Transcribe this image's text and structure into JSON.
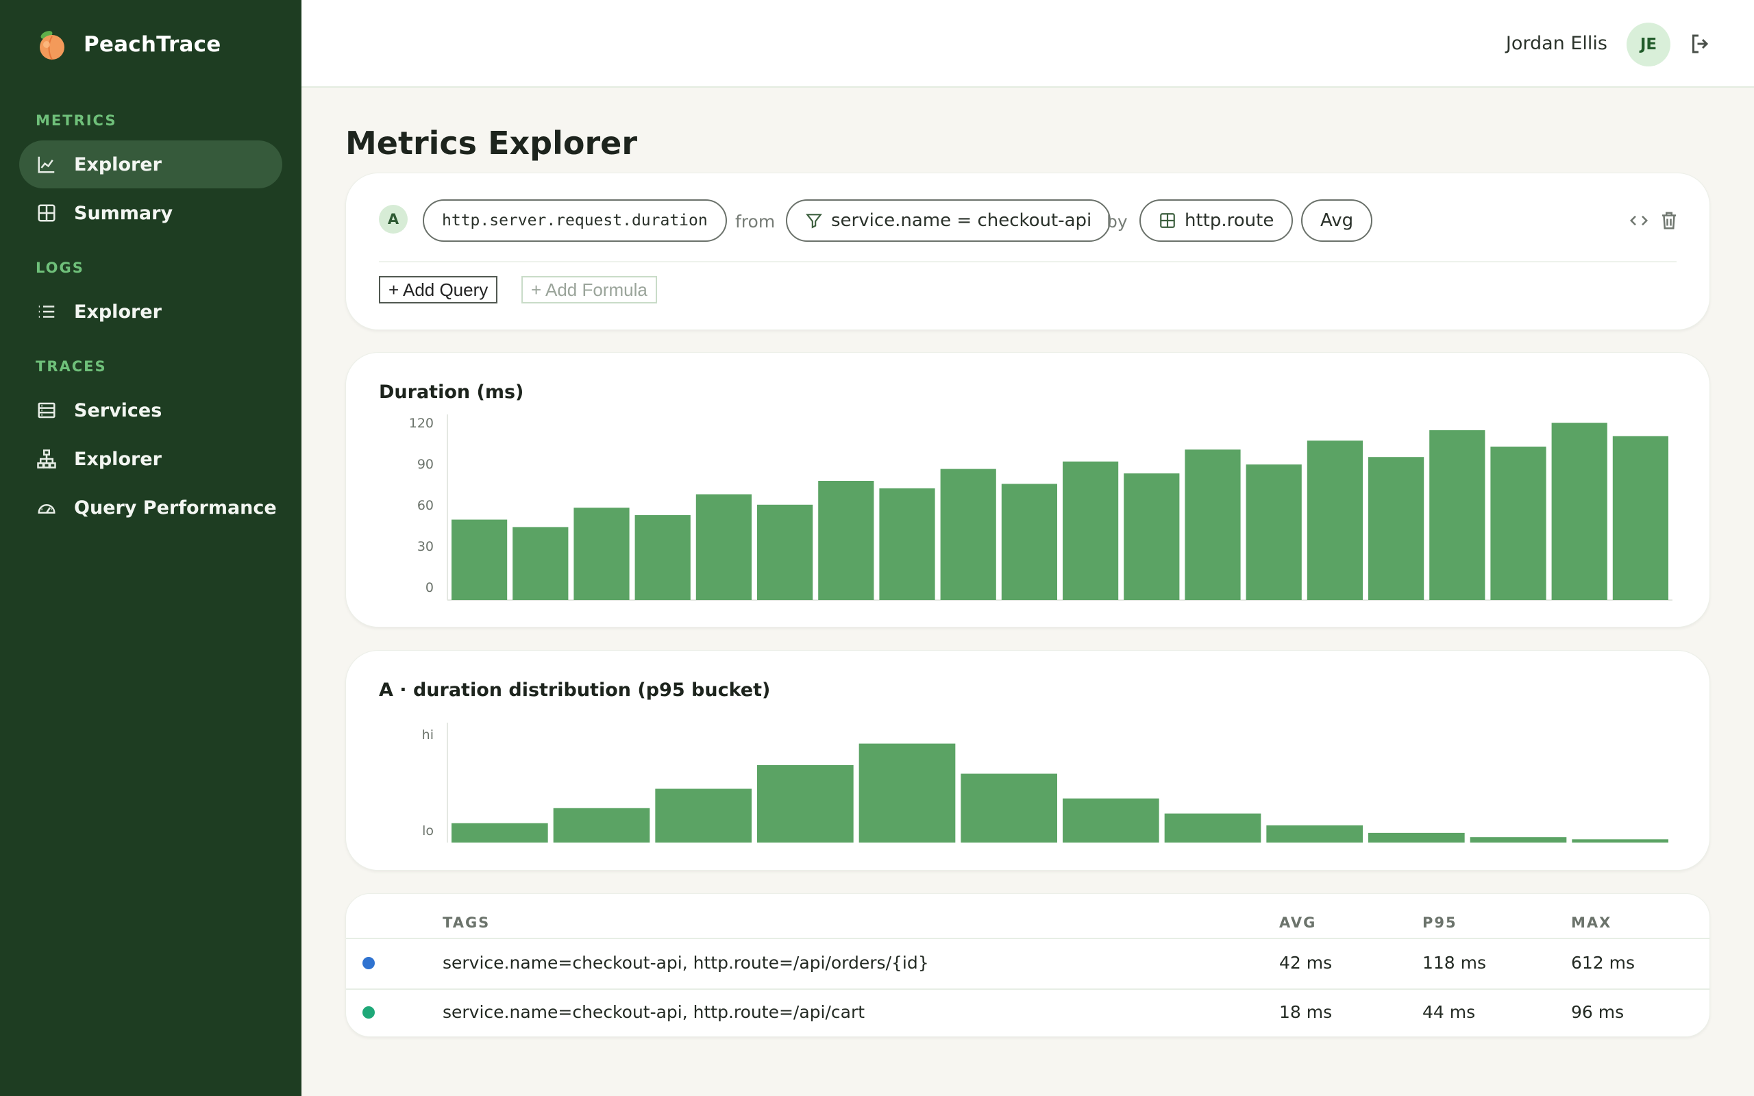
{
  "brand": {
    "name": "PeachTrace",
    "icon": "peach-icon"
  },
  "sidebar": {
    "sections": [
      {
        "label": "METRICS",
        "items": [
          {
            "label": "Explorer",
            "icon": "chart-line-icon",
            "active": true
          },
          {
            "label": "Summary",
            "icon": "grid-icon",
            "active": false
          }
        ]
      },
      {
        "label": "LOGS",
        "items": [
          {
            "label": "Explorer",
            "icon": "list-icon",
            "active": false
          }
        ]
      },
      {
        "label": "TRACES",
        "items": [
          {
            "label": "Services",
            "icon": "server-icon",
            "active": false
          },
          {
            "label": "Explorer",
            "icon": "hierarchy-icon",
            "active": false
          },
          {
            "label": "Query Performance",
            "icon": "gauge-icon",
            "active": false
          }
        ]
      }
    ]
  },
  "header": {
    "user_name": "Jordan Ellis",
    "avatar_initials": "JE"
  },
  "page": {
    "title": "Metrics Explorer"
  },
  "query": {
    "letter": "A",
    "metric": "http.server.request.duration",
    "from_label": "from",
    "filter": "service.name = checkout-api",
    "by_label": "by",
    "group_by": "http.route",
    "aggregation": "Avg",
    "add_query_label": "+ Add Query",
    "add_formula_label": "+ Add Formula"
  },
  "colors": {
    "bar": "#5ba364",
    "series_1": "#2f73d0",
    "series_2": "#1fa878"
  },
  "chart_data": [
    {
      "type": "bar",
      "title": "Duration (ms)",
      "ylim": [
        0,
        120
      ],
      "yticks": [
        "120",
        "90",
        "60",
        "30",
        "0"
      ],
      "values": [
        54,
        49,
        62,
        57,
        71,
        64,
        80,
        75,
        88,
        78,
        93,
        85,
        101,
        91,
        107,
        96,
        114,
        103,
        119,
        110
      ]
    },
    {
      "type": "bar",
      "title": "A · duration distribution (p95 bucket)",
      "yticks": [
        "hi",
        "lo"
      ],
      "values": [
        0.18,
        0.32,
        0.5,
        0.72,
        0.92,
        0.64,
        0.41,
        0.27,
        0.16,
        0.09,
        0.05,
        0.03
      ]
    }
  ],
  "table": {
    "headers": {
      "tags": "TAGS",
      "avg": "AVG",
      "p95": "P95",
      "max": "MAX"
    },
    "rows": [
      {
        "color": "#2f73d0",
        "tags": "service.name=checkout-api, http.route=/api/orders/{id}",
        "avg": "42 ms",
        "p95": "118 ms",
        "max": "612 ms"
      },
      {
        "color": "#1fa878",
        "tags": "service.name=checkout-api, http.route=/api/cart",
        "avg": "18 ms",
        "p95": "44 ms",
        "max": "96 ms"
      }
    ]
  }
}
